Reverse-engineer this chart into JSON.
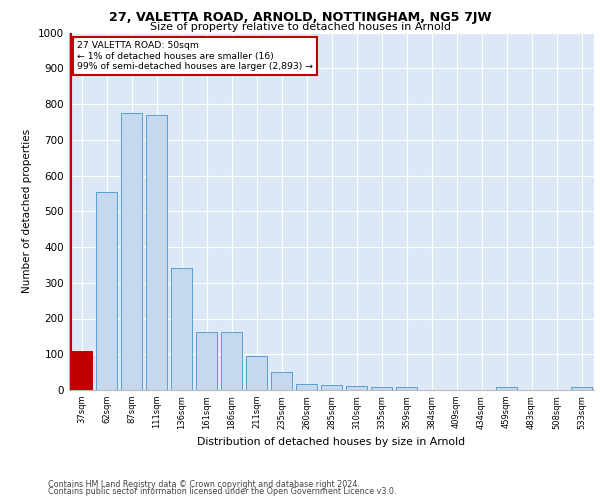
{
  "title1": "27, VALETTA ROAD, ARNOLD, NOTTINGHAM, NG5 7JW",
  "title2": "Size of property relative to detached houses in Arnold",
  "xlabel": "Distribution of detached houses by size in Arnold",
  "ylabel": "Number of detached properties",
  "categories": [
    "37sqm",
    "62sqm",
    "87sqm",
    "111sqm",
    "136sqm",
    "161sqm",
    "186sqm",
    "211sqm",
    "235sqm",
    "260sqm",
    "285sqm",
    "310sqm",
    "335sqm",
    "359sqm",
    "384sqm",
    "409sqm",
    "434sqm",
    "459sqm",
    "483sqm",
    "508sqm",
    "533sqm"
  ],
  "values": [
    110,
    555,
    775,
    770,
    340,
    163,
    163,
    95,
    50,
    18,
    13,
    10,
    8,
    8,
    0,
    0,
    0,
    8,
    0,
    0,
    8
  ],
  "bar_color": "#c5d8ed",
  "bar_edge_color": "#5a9fd4",
  "highlight_index": 0,
  "highlight_color": "#c00000",
  "annotation_box_color": "#ffffff",
  "annotation_border_color": "#c00000",
  "annotation_text_line1": "27 VALETTA ROAD: 50sqm",
  "annotation_text_line2": "← 1% of detached houses are smaller (16)",
  "annotation_text_line3": "99% of semi-detached houses are larger (2,893) →",
  "ylim": [
    0,
    1000
  ],
  "yticks": [
    0,
    100,
    200,
    300,
    400,
    500,
    600,
    700,
    800,
    900,
    1000
  ],
  "background_color": "#dce8f5",
  "footer_line1": "Contains HM Land Registry data © Crown copyright and database right 2024.",
  "footer_line2": "Contains public sector information licensed under the Open Government Licence v3.0."
}
